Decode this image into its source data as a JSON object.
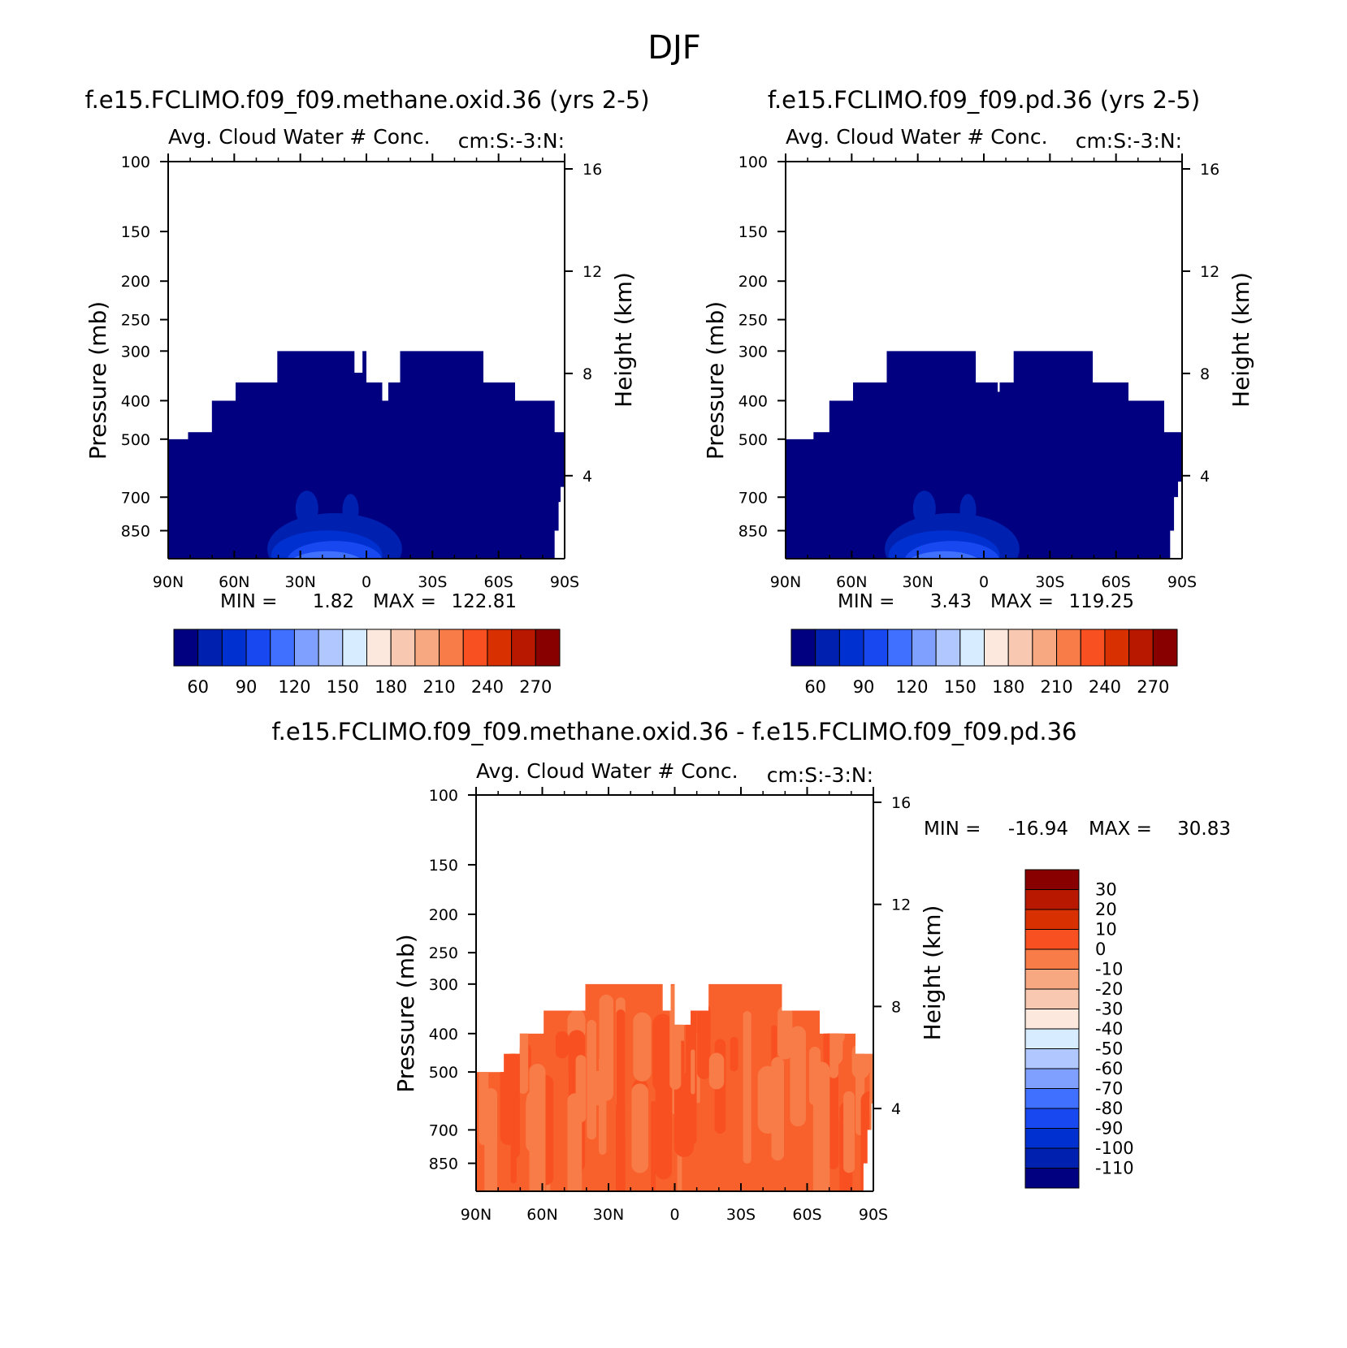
{
  "title": "DJF",
  "colors": {
    "blue_levels": [
      "#000080",
      "#0020b0",
      "#0030d0",
      "#1848f0",
      "#4070ff",
      "#80a0ff",
      "#b0c8ff",
      "#d8ecff",
      "#fce8dc",
      "#f8c8b0",
      "#f8a880",
      "#f87c48",
      "#f85020",
      "#d83000",
      "#b81800",
      "#880000"
    ],
    "diff_levels": [
      "#880000",
      "#b81800",
      "#d83000",
      "#f85020",
      "#f87c48",
      "#f8a880",
      "#f8c8b0",
      "#fce8dc",
      "#d8ecff",
      "#b0c8ff",
      "#80a0ff",
      "#4070ff",
      "#1848f0",
      "#0030d0",
      "#0020b0",
      "#000080"
    ]
  },
  "chart_data": [
    {
      "type": "heatmap",
      "title": "f.e15.FCLIMO.f09_f09.methane.oxid.36 (yrs 2-5)",
      "subtitle_left": "Avg. Cloud Water # Conc.",
      "subtitle_right": "cm:S:-3:N:",
      "xlabel": "",
      "ylabel": "Pressure (mb)",
      "y2label": "Height (km)",
      "x_ticks": [
        "90N",
        "60N",
        "30N",
        "0",
        "30S",
        "60S",
        "90S"
      ],
      "y_ticks": [
        100,
        150,
        200,
        250,
        300,
        400,
        500,
        700,
        850
      ],
      "y2_ticks": [
        16,
        12,
        8,
        4
      ],
      "ylim": [
        100,
        1000
      ],
      "min_label": "MIN =",
      "min_value": "1.82",
      "max_label": "MAX =",
      "max_value": "122.81",
      "colorbar_labels": [
        "60",
        "90",
        "120",
        "150",
        "180",
        "210",
        "240",
        "270"
      ]
    },
    {
      "type": "heatmap",
      "title": "f.e15.FCLIMO.f09_f09.pd.36 (yrs 2-5)",
      "subtitle_left": "Avg. Cloud Water # Conc.",
      "subtitle_right": "cm:S:-3:N:",
      "xlabel": "",
      "ylabel": "Pressure (mb)",
      "y2label": "Height (km)",
      "x_ticks": [
        "90N",
        "60N",
        "30N",
        "0",
        "30S",
        "60S",
        "90S"
      ],
      "y_ticks": [
        100,
        150,
        200,
        250,
        300,
        400,
        500,
        700,
        850
      ],
      "y2_ticks": [
        16,
        12,
        8,
        4
      ],
      "ylim": [
        100,
        1000
      ],
      "min_label": "MIN =",
      "min_value": "3.43",
      "max_label": "MAX =",
      "max_value": "119.25",
      "colorbar_labels": [
        "60",
        "90",
        "120",
        "150",
        "180",
        "210",
        "240",
        "270"
      ]
    },
    {
      "type": "heatmap",
      "title": "f.e15.FCLIMO.f09_f09.methane.oxid.36 - f.e15.FCLIMO.f09_f09.pd.36",
      "subtitle_left": "Avg. Cloud Water # Conc.",
      "subtitle_right": "cm:S:-3:N:",
      "xlabel": "",
      "ylabel": "Pressure (mb)",
      "y2label": "Height (km)",
      "x_ticks": [
        "90N",
        "60N",
        "30N",
        "0",
        "30S",
        "60S",
        "90S"
      ],
      "y_ticks": [
        100,
        150,
        200,
        250,
        300,
        400,
        500,
        700,
        850
      ],
      "y2_ticks": [
        16,
        12,
        8,
        4
      ],
      "ylim": [
        100,
        1000
      ],
      "min_label": "MIN =",
      "min_value": "-16.94",
      "max_label": "MAX =",
      "max_value": "30.83",
      "colorbar_labels": [
        "30",
        "20",
        "10",
        "0",
        "-10",
        "-20",
        "-30",
        "-40",
        "-50",
        "-60",
        "-70",
        "-80",
        "-90",
        "-100",
        "-110"
      ]
    }
  ]
}
